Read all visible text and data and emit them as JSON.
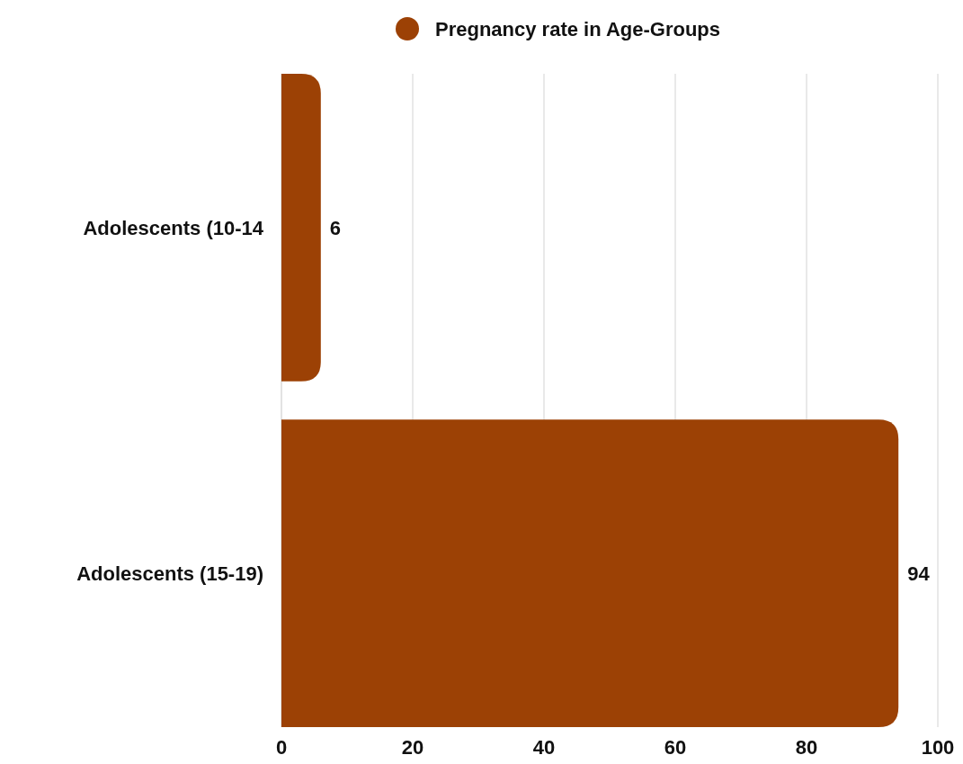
{
  "chart_data": {
    "type": "bar",
    "orientation": "horizontal",
    "categories": [
      "Adolescents (10-14",
      "Adolescents (15-19)"
    ],
    "series": [
      {
        "name": "Pregnancy rate in Age-Groups",
        "color": "#9c4105",
        "values": [
          6,
          94
        ]
      }
    ],
    "xlim": [
      0,
      100
    ],
    "xticks": [
      0,
      20,
      40,
      60,
      80,
      100
    ],
    "grid": "x",
    "legend": "top",
    "data_labels": true
  }
}
